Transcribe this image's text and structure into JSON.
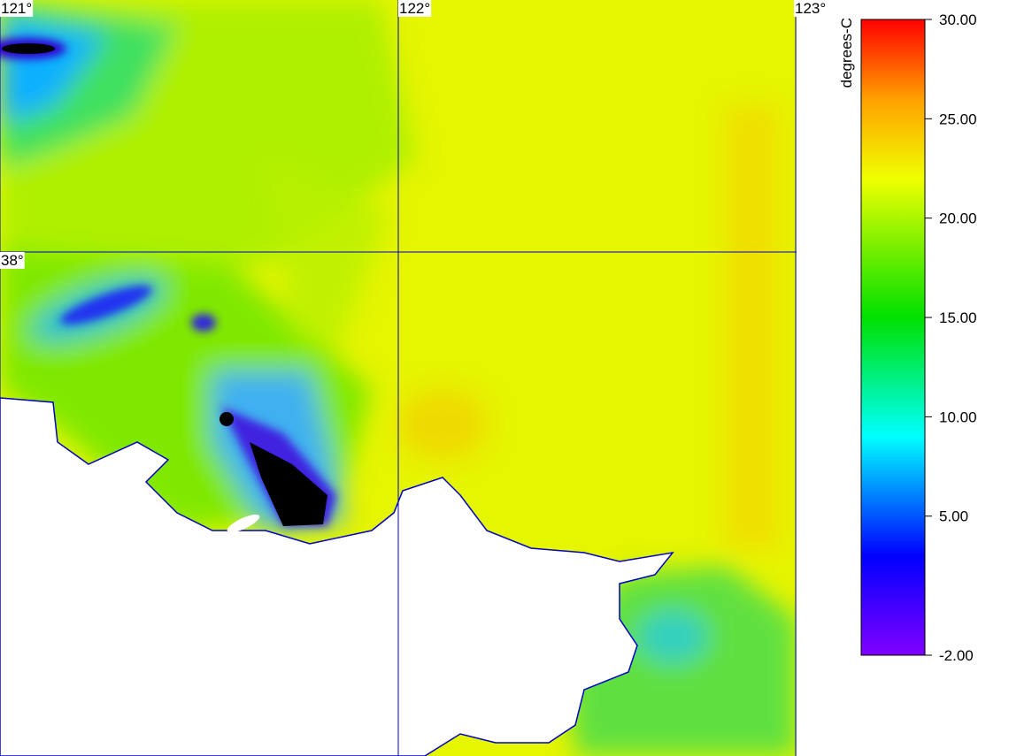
{
  "map": {
    "xlim": [
      121,
      123
    ],
    "ylim": [
      37.0,
      38.5
    ],
    "lon_ticks": [
      {
        "value": 121,
        "label": "121°"
      },
      {
        "value": 122,
        "label": "122°"
      },
      {
        "value": 123,
        "label": "123°"
      }
    ],
    "lat_ticks": [
      {
        "value": 38,
        "label": "38°"
      }
    ],
    "grid_color": "#0000c8"
  },
  "colorbar": {
    "label": "degrees-C",
    "lim": [
      -2,
      30
    ],
    "ticks": [
      {
        "value": 30,
        "label": "30.00"
      },
      {
        "value": 25,
        "label": "25.00"
      },
      {
        "value": 20,
        "label": "20.00"
      },
      {
        "value": 15,
        "label": "15.00"
      },
      {
        "value": 10,
        "label": "10.00"
      },
      {
        "value": 5,
        "label": "5.00"
      },
      {
        "value": -2,
        "label": "-2.00"
      }
    ],
    "stops": [
      {
        "value": -2,
        "color": "#8000ff"
      },
      {
        "value": 3,
        "color": "#0000ff"
      },
      {
        "value": 9,
        "color": "#00ffff"
      },
      {
        "value": 15,
        "color": "#00e000"
      },
      {
        "value": 22,
        "color": "#f0ff00"
      },
      {
        "value": 26,
        "color": "#ffa000"
      },
      {
        "value": 30,
        "color": "#ff0000"
      }
    ]
  }
}
